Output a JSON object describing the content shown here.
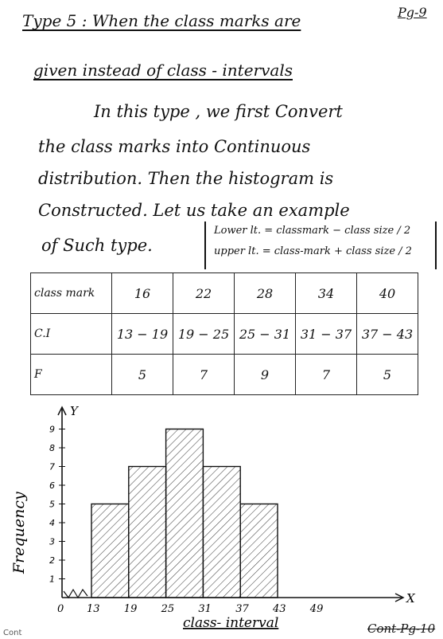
{
  "header": {
    "title_line1": "Type 5 : When the class marks are",
    "page_ref": "Pg-9",
    "title_line2": "given instead of class - intervals"
  },
  "body": {
    "line1": "In this type , we first Convert",
    "line2": "the class marks into Continuous",
    "line3": "distribution. Then the histogram is",
    "line4": "Constructed. Let us take an example",
    "line5": "of Such type.",
    "formula_lower": "Lower lt. = classmark − class size / 2",
    "formula_upper": "upper lt. = class-mark + class size / 2"
  },
  "table": {
    "rows": [
      {
        "label": "class mark",
        "cells": [
          "16",
          "22",
          "28",
          "34",
          "40"
        ]
      },
      {
        "label": "C.I",
        "cells": [
          "13 − 19",
          "19 − 25",
          "25 − 31",
          "31 − 37",
          "37 − 43"
        ]
      },
      {
        "label": "F",
        "cells": [
          "5",
          "7",
          "9",
          "7",
          "5"
        ]
      }
    ]
  },
  "chart_data": {
    "type": "bar",
    "categories": [
      "13-19",
      "19-25",
      "25-31",
      "31-37",
      "37-43"
    ],
    "bins": [
      [
        13,
        19
      ],
      [
        19,
        25
      ],
      [
        25,
        31
      ],
      [
        31,
        37
      ],
      [
        37,
        43
      ]
    ],
    "values": [
      5,
      7,
      9,
      7,
      5
    ],
    "xticks": [
      "0",
      "13",
      "19",
      "25",
      "31",
      "37",
      "43",
      "49"
    ],
    "yticks": [
      "1",
      "2",
      "3",
      "4",
      "5",
      "6",
      "7",
      "8",
      "9"
    ],
    "xlabel": "class- interval",
    "ylabel": "Frequency",
    "x_axis_letter": "X",
    "y_axis_letter": "Y",
    "ylim": [
      0,
      10
    ],
    "bar_pattern": "diagonal-hatch"
  },
  "footer": {
    "left_text": "Cont",
    "right_text": "Cont-Pg-10"
  }
}
